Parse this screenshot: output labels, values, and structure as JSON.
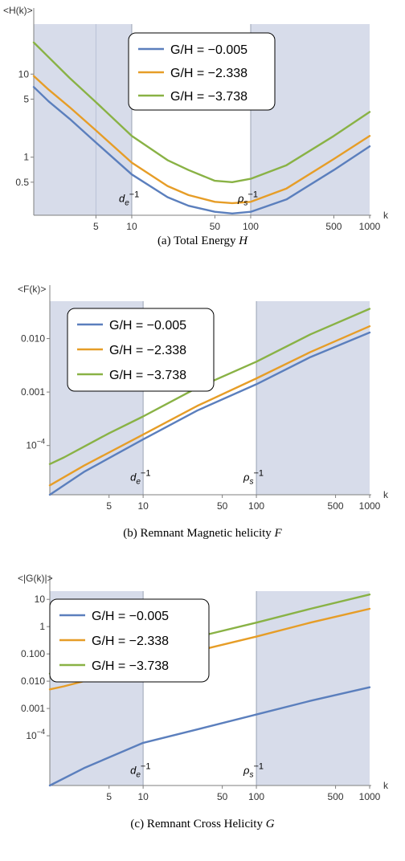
{
  "colors": {
    "shade": "#d7dcea",
    "axis": "#7f7f7f",
    "marker_line": "#9aa3b5",
    "series": [
      "#5b7fbd",
      "#e69d27",
      "#89b245"
    ]
  },
  "chart_data": [
    {
      "type": "line",
      "caption_prefix": "(a) Total Energy",
      "caption_symbol": "H",
      "ylabel": "<H(k)>",
      "xlabel": "k",
      "x_scale": "log",
      "y_scale": "log",
      "xlim": [
        1.5,
        1000
      ],
      "ylim": [
        0.2,
        40
      ],
      "x_ticks": [
        {
          "value": 5,
          "label": "5"
        },
        {
          "value": 10,
          "label": "10"
        },
        {
          "value": 50,
          "label": "50"
        },
        {
          "value": 100,
          "label": "100"
        },
        {
          "value": 500,
          "label": "500"
        },
        {
          "value": 1000,
          "label": "1000"
        }
      ],
      "y_ticks": [
        {
          "value": 0.5,
          "label": "0.5"
        },
        {
          "value": 1,
          "label": "1"
        },
        {
          "value": 5,
          "label": "5"
        },
        {
          "value": 10,
          "label": "10"
        }
      ],
      "shaded_regions": [
        [
          1.5,
          10
        ],
        [
          100,
          1000
        ]
      ],
      "vertical_lines": [
        5
      ],
      "markers": [
        {
          "base": "d",
          "sub": "e",
          "sup": "−1",
          "x": 10,
          "y": 0.29
        },
        {
          "base": "ρ",
          "sub": "s",
          "sup": "−1",
          "x": 100,
          "y": 0.29
        }
      ],
      "legend": {
        "position": "top-center"
      },
      "series": [
        {
          "name": "G/H = −0.005",
          "x": [
            1.5,
            2,
            3,
            5,
            10,
            20,
            30,
            50,
            70,
            100,
            200,
            500,
            1000
          ],
          "y": [
            7,
            4.7,
            2.9,
            1.5,
            0.62,
            0.33,
            0.26,
            0.22,
            0.21,
            0.22,
            0.31,
            0.7,
            1.35
          ]
        },
        {
          "name": "G/H = −2.338",
          "x": [
            1.5,
            2,
            3,
            5,
            10,
            20,
            30,
            50,
            70,
            100,
            200,
            500,
            1000
          ],
          "y": [
            9.5,
            6.5,
            4.0,
            2.1,
            0.86,
            0.45,
            0.35,
            0.29,
            0.28,
            0.29,
            0.42,
            0.95,
            1.8
          ]
        },
        {
          "name": "G/H = −3.738",
          "x": [
            1.5,
            2,
            3,
            5,
            10,
            20,
            30,
            50,
            70,
            100,
            200,
            500,
            1000
          ],
          "y": [
            24,
            16,
            9,
            4.6,
            1.8,
            0.92,
            0.7,
            0.52,
            0.5,
            0.55,
            0.8,
            1.8,
            3.5
          ]
        }
      ]
    },
    {
      "type": "line",
      "caption_prefix": "(b) Remnant Magnetic helicity",
      "caption_symbol": "F",
      "ylabel": "<F(k)>",
      "xlabel": "k",
      "x_scale": "log",
      "y_scale": "log",
      "xlim": [
        1.5,
        1000
      ],
      "ylim": [
        1.2e-05,
        0.05
      ],
      "x_ticks": [
        {
          "value": 5,
          "label": "5"
        },
        {
          "value": 10,
          "label": "10"
        },
        {
          "value": 50,
          "label": "50"
        },
        {
          "value": 100,
          "label": "100"
        },
        {
          "value": 500,
          "label": "500"
        },
        {
          "value": 1000,
          "label": "1000"
        }
      ],
      "y_ticks": [
        {
          "value": 0.0001,
          "label": "10",
          "exp": "−4"
        },
        {
          "value": 0.001,
          "label": "0.001"
        },
        {
          "value": 0.01,
          "label": "0.010"
        }
      ],
      "shaded_regions": [
        [
          1.5,
          10
        ],
        [
          100,
          1000
        ]
      ],
      "vertical_lines": [],
      "markers": [
        {
          "base": "d",
          "sub": "e",
          "sup": "−1",
          "x": 10,
          "y": 2.2e-05
        },
        {
          "base": "ρ",
          "sub": "s",
          "sup": "−1",
          "x": 100,
          "y": 2.2e-05
        }
      ],
      "legend": {
        "position": "top-left"
      },
      "series": [
        {
          "name": "G/H = −0.005",
          "x": [
            1.5,
            3,
            10,
            30,
            100,
            300,
            1000
          ],
          "y": [
            1.2e-05,
            3.2e-05,
            0.00013,
            0.00045,
            0.0014,
            0.0045,
            0.013
          ]
        },
        {
          "name": "G/H = −2.338",
          "x": [
            1.5,
            3,
            10,
            30,
            100,
            300,
            1000
          ],
          "y": [
            1.8e-05,
            4.2e-05,
            0.00016,
            0.00055,
            0.0018,
            0.0056,
            0.017
          ]
        },
        {
          "name": "G/H = −3.738",
          "x": [
            1.5,
            2,
            3,
            5,
            10,
            30,
            100,
            300,
            1000
          ],
          "y": [
            4.5e-05,
            6e-05,
            9.5e-05,
            0.00017,
            0.00035,
            0.0012,
            0.0037,
            0.012,
            0.036
          ]
        }
      ]
    },
    {
      "type": "line",
      "caption_prefix": "(c) Remnant Cross Helicity",
      "caption_symbol": "G",
      "ylabel": "<|G(k)|>",
      "xlabel": "k",
      "x_scale": "log",
      "y_scale": "log",
      "xlim": [
        1.5,
        1000
      ],
      "ylim": [
        1.5e-06,
        20
      ],
      "x_ticks": [
        {
          "value": 5,
          "label": "5"
        },
        {
          "value": 10,
          "label": "10"
        },
        {
          "value": 50,
          "label": "50"
        },
        {
          "value": 100,
          "label": "100"
        },
        {
          "value": 500,
          "label": "500"
        },
        {
          "value": 1000,
          "label": "1000"
        }
      ],
      "y_ticks": [
        {
          "value": 0.0001,
          "label": "10",
          "exp": "−4"
        },
        {
          "value": 0.001,
          "label": "0.001"
        },
        {
          "value": 0.01,
          "label": "0.010"
        },
        {
          "value": 0.1,
          "label": "0.100"
        },
        {
          "value": 1,
          "label": "1"
        },
        {
          "value": 10,
          "label": "10"
        }
      ],
      "shaded_regions": [
        [
          1.5,
          10
        ],
        [
          100,
          1000
        ]
      ],
      "vertical_lines": [],
      "markers": [
        {
          "base": "d",
          "sub": "e",
          "sup": "−1",
          "x": 10,
          "y": 4e-06
        },
        {
          "base": "ρ",
          "sub": "s",
          "sup": "−1",
          "x": 100,
          "y": 4e-06
        }
      ],
      "legend": {
        "position": "top-left"
      },
      "series": [
        {
          "name": "G/H = −0.005",
          "x": [
            1.5,
            3,
            10,
            30,
            100,
            300,
            1000
          ],
          "y": [
            1.5e-06,
            6.5e-06,
            5.5e-05,
            0.00017,
            0.0006,
            0.0019,
            0.006
          ]
        },
        {
          "name": "G/H = −2.338",
          "x": [
            1.5,
            2,
            3,
            5,
            10,
            30,
            100,
            300,
            1000
          ],
          "y": [
            0.005,
            0.0065,
            0.01,
            0.018,
            0.04,
            0.13,
            0.43,
            1.4,
            4.5
          ]
        },
        {
          "name": "G/H = −3.738",
          "x": [
            1.5,
            2,
            3,
            5,
            10,
            30,
            100,
            300,
            1000
          ],
          "y": [
            0.019,
            0.023,
            0.034,
            0.06,
            0.13,
            0.42,
            1.4,
            4.5,
            15
          ]
        }
      ]
    }
  ]
}
